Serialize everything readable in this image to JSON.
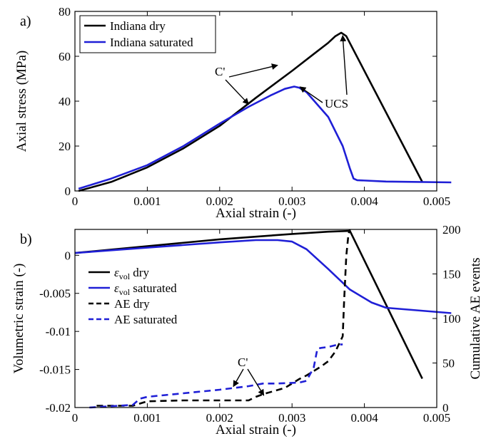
{
  "chart_data": [
    {
      "panel_label": "a)",
      "type": "line",
      "xlabel": "Axial strain (-)",
      "ylabel": "Axial stress (MPa)",
      "xlim": [
        0,
        0.005
      ],
      "ylim": [
        0,
        80
      ],
      "xticks": [
        "0",
        "0.001",
        "0.002",
        "0.003",
        "0.004",
        "0.005"
      ],
      "yticks": [
        "0",
        "20",
        "40",
        "60",
        "80"
      ],
      "legend_position": "top-left",
      "series": [
        {
          "name": "Indiana dry",
          "color": "#000000",
          "dash": "solid",
          "x": [
            5e-05,
            0.0005,
            0.001,
            0.0015,
            0.002,
            0.0025,
            0.003,
            0.0033,
            0.0035,
            0.0036,
            0.00368,
            0.00375,
            0.0048
          ],
          "y": [
            0,
            4,
            10.5,
            19,
            29,
            41.5,
            53.5,
            61,
            66,
            69,
            70.5,
            69,
            4
          ]
        },
        {
          "name": "Indiana saturated",
          "color": "#1f1fd6",
          "dash": "solid",
          "x": [
            5e-05,
            0.0005,
            0.001,
            0.0015,
            0.002,
            0.0024,
            0.0027,
            0.0029,
            0.00303,
            0.0031,
            0.0032,
            0.0035,
            0.0037,
            0.0038,
            0.00385,
            0.0039,
            0.0043,
            0.0052
          ],
          "y": [
            1,
            5.5,
            11.5,
            20,
            30,
            37.5,
            42.5,
            45.5,
            46.5,
            46,
            44,
            33,
            20,
            10,
            5.5,
            4.8,
            4.2,
            3.8
          ]
        }
      ],
      "annotations": [
        {
          "text": "C'",
          "points_to": [
            [
              0.0028,
              56
            ],
            [
              0.0024,
              38
            ]
          ]
        },
        {
          "text": "UCS",
          "points_to": [
            [
              0.0037,
              70.5
            ],
            [
              0.00305,
              47
            ]
          ]
        }
      ]
    },
    {
      "panel_label": "b)",
      "type": "line",
      "xlabel": "Axial strain (-)",
      "ylabel": "Volumetric strain (-)",
      "y2label": "Cumulative AE events",
      "xlim": [
        0,
        0.005
      ],
      "ylim": [
        -0.02,
        0.0034
      ],
      "y2lim": [
        0,
        200
      ],
      "xticks": [
        "0",
        "0.001",
        "0.002",
        "0.003",
        "0.004",
        "0.005"
      ],
      "yticks": [
        "0",
        "-0.005",
        "-0.01",
        "-0.015",
        "-0.02"
      ],
      "y2ticks": [
        "0",
        "50",
        "100",
        "150",
        "200"
      ],
      "legend_position": "center-left",
      "series": [
        {
          "name": "dry",
          "legend_prefix": "ε",
          "legend_sub": "vol",
          "color": "#000000",
          "dash": "solid",
          "axis": "left",
          "x": [
            0.0,
            0.001,
            0.002,
            0.003,
            0.0035,
            0.0038,
            0.0048
          ],
          "y": [
            0.0003,
            0.0012,
            0.0021,
            0.0028,
            0.0031,
            0.0032,
            -0.0162
          ]
        },
        {
          "name": "saturated",
          "legend_prefix": "ε",
          "legend_sub": "vol",
          "color": "#1f1fd6",
          "dash": "solid",
          "axis": "left",
          "x": [
            0.0,
            0.001,
            0.002,
            0.0025,
            0.0028,
            0.003,
            0.0032,
            0.0035,
            0.0038,
            0.0041,
            0.0043,
            0.0052
          ],
          "y": [
            0.0003,
            0.001,
            0.0017,
            0.002,
            0.002,
            0.0018,
            0.0008,
            -0.0018,
            -0.0045,
            -0.0062,
            -0.0069,
            -0.0076
          ]
        },
        {
          "name": "AE dry",
          "color": "#000000",
          "dash": "dashed",
          "axis": "right",
          "x": [
            0.0003,
            0.0008,
            0.001,
            0.0015,
            0.002,
            0.0024,
            0.0025,
            0.0026,
            0.0029,
            0.003,
            0.0031,
            0.0032,
            0.0033,
            0.0034,
            0.0035,
            0.0036,
            0.0037,
            0.00372,
            0.00375,
            0.00378,
            0.0038
          ],
          "y": [
            2,
            2,
            7,
            8,
            8,
            8,
            12,
            15,
            22,
            27,
            32,
            36,
            41,
            46,
            52,
            63,
            80,
            120,
            170,
            195,
            200
          ]
        },
        {
          "name": "AE saturated",
          "color": "#1f1fd6",
          "dash": "dashed",
          "axis": "right",
          "x": [
            0.0002,
            0.0008,
            0.0009,
            0.001,
            0.0015,
            0.002,
            0.0024,
            0.0026,
            0.0028,
            0.0031,
            0.0032,
            0.0033,
            0.00335,
            0.0034,
            0.0035,
            0.0036,
            0.0037
          ],
          "y": [
            0,
            3,
            10,
            12,
            16,
            20,
            24,
            27,
            27,
            28,
            30,
            45,
            66,
            67,
            68,
            70,
            71
          ]
        }
      ],
      "annotations": [
        {
          "text": "C'",
          "points_to": [
            [
              0.0024,
              22
            ],
            [
              0.0026,
              12
            ]
          ]
        }
      ]
    }
  ]
}
